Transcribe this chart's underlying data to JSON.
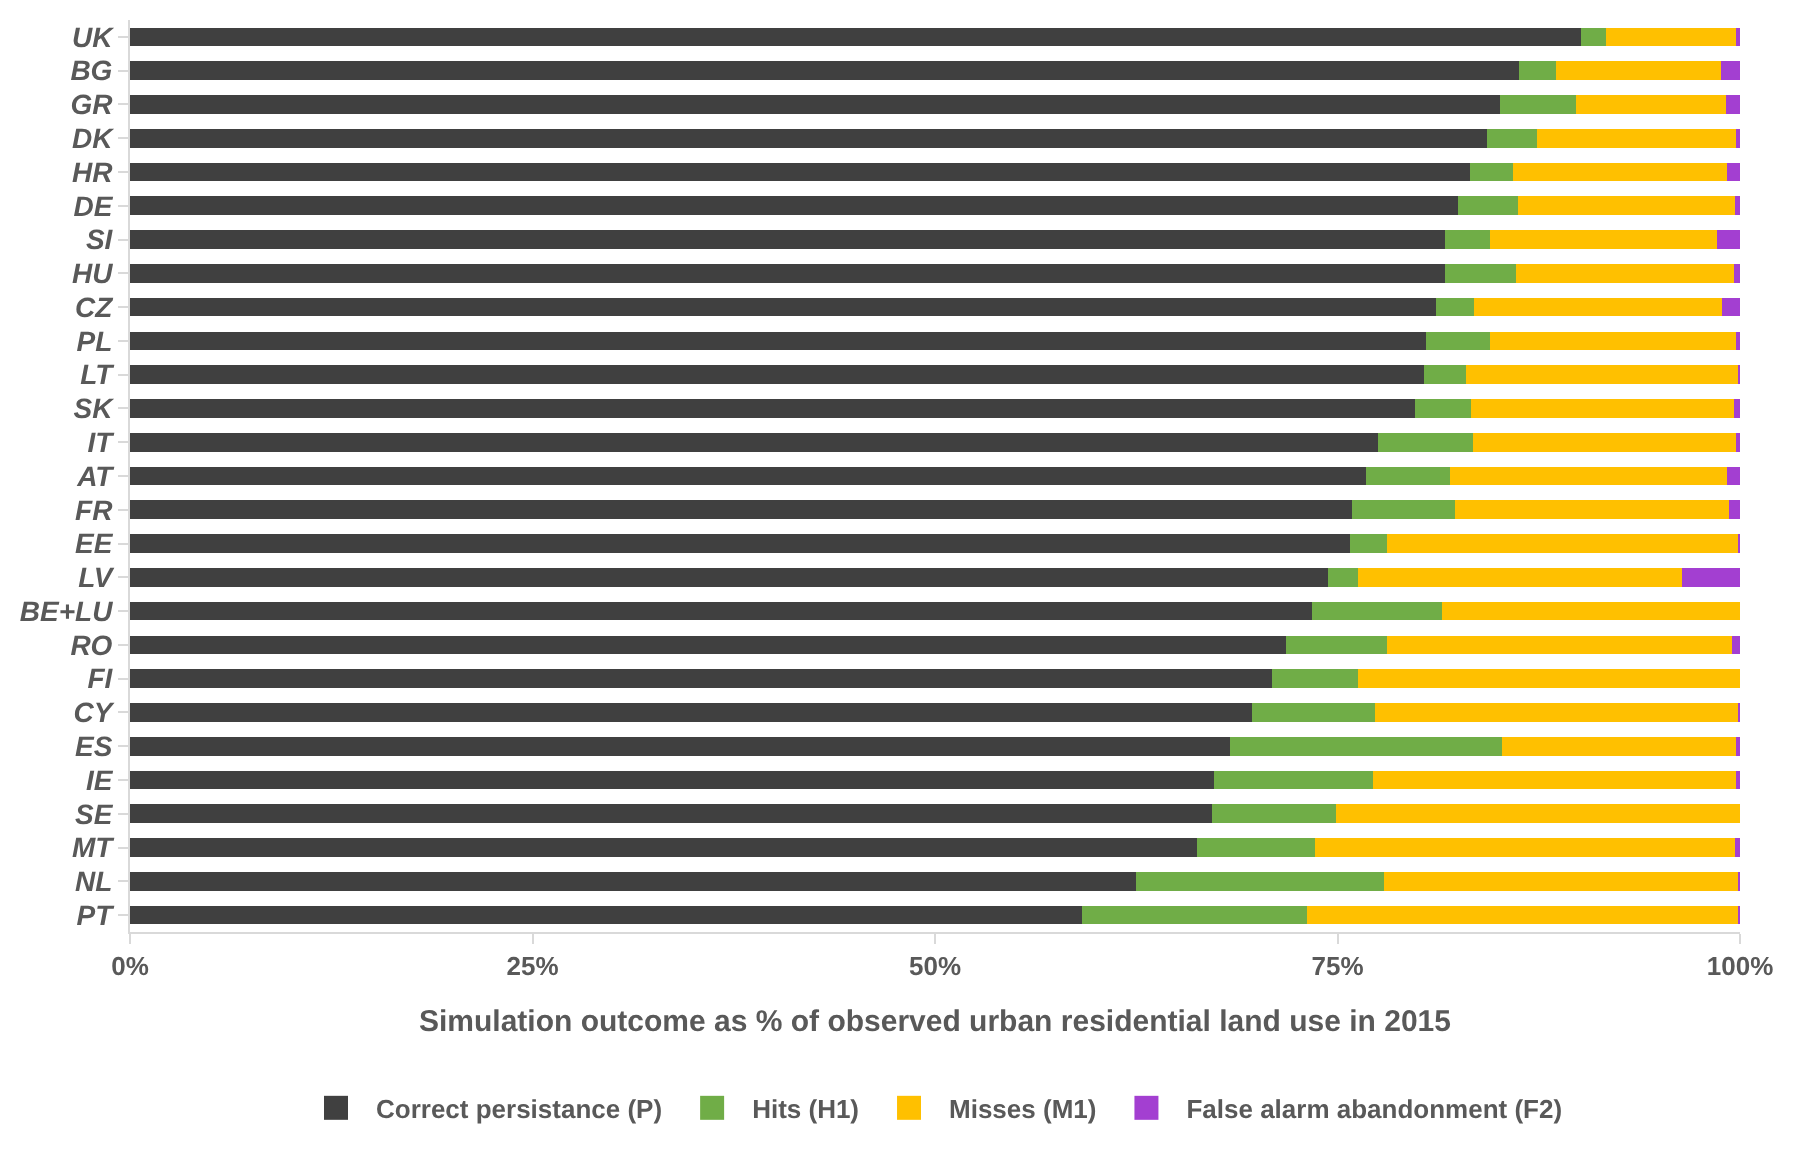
{
  "chart_data": {
    "type": "bar",
    "orientation": "horizontal",
    "stacked": true,
    "xlabel": "Simulation outcome as % of observed urban residential land use in 2015",
    "categories": [
      "UK",
      "BG",
      "GR",
      "DK",
      "HR",
      "DE",
      "SI",
      "HU",
      "CZ",
      "PL",
      "LT",
      "SK",
      "IT",
      "AT",
      "FR",
      "EE",
      "LV",
      "BE+LU",
      "RO",
      "FI",
      "CY",
      "ES",
      "IE",
      "SE",
      "MT",
      "NL",
      "PT"
    ],
    "series": [
      {
        "name": "Correct persistance (P)",
        "color": "#404040",
        "values": [
          90.1,
          86.3,
          85.1,
          84.3,
          83.2,
          82.5,
          81.7,
          81.7,
          81.1,
          80.5,
          80.4,
          79.8,
          77.5,
          76.8,
          75.9,
          75.8,
          74.4,
          73.4,
          71.8,
          70.9,
          69.7,
          68.3,
          67.3,
          67.2,
          66.3,
          62.5,
          59.1
        ]
      },
      {
        "name": "Hits (H1)",
        "color": "#70ad47",
        "values": [
          1.6,
          2.3,
          4.7,
          3.1,
          2.7,
          3.7,
          2.8,
          4.4,
          2.4,
          4.0,
          2.6,
          3.5,
          5.9,
          5.2,
          6.4,
          2.3,
          1.9,
          8.1,
          6.3,
          5.4,
          7.6,
          16.9,
          9.9,
          7.7,
          7.3,
          15.4,
          14.0
        ]
      },
      {
        "name": "Misses (M1)",
        "color": "#ffc000",
        "values": [
          8.1,
          10.2,
          9.3,
          12.4,
          13.3,
          13.5,
          14.1,
          13.5,
          15.4,
          15.3,
          16.9,
          16.3,
          16.4,
          17.2,
          17.0,
          21.8,
          20.1,
          18.5,
          21.4,
          23.7,
          22.6,
          14.6,
          22.6,
          25.1,
          26.1,
          22.0,
          26.8
        ]
      },
      {
        "name": "False alarm abandonment (F2)",
        "color": "#a33fd1",
        "values": [
          0.2,
          1.2,
          0.9,
          0.2,
          0.8,
          0.3,
          1.4,
          0.4,
          1.1,
          0.2,
          0.1,
          0.4,
          0.2,
          0.8,
          0.7,
          0.1,
          3.6,
          0,
          0.5,
          0,
          0.1,
          0.2,
          0.2,
          0,
          0.3,
          0.1,
          0.1
        ]
      }
    ],
    "xlim": [
      0,
      100
    ],
    "xticks": [
      {
        "value": 0,
        "label": "0%"
      },
      {
        "value": 25,
        "label": "25%"
      },
      {
        "value": 50,
        "label": "50%"
      },
      {
        "value": 75,
        "label": "75%"
      },
      {
        "value": 100,
        "label": "100%"
      }
    ],
    "legend": "bottom"
  }
}
